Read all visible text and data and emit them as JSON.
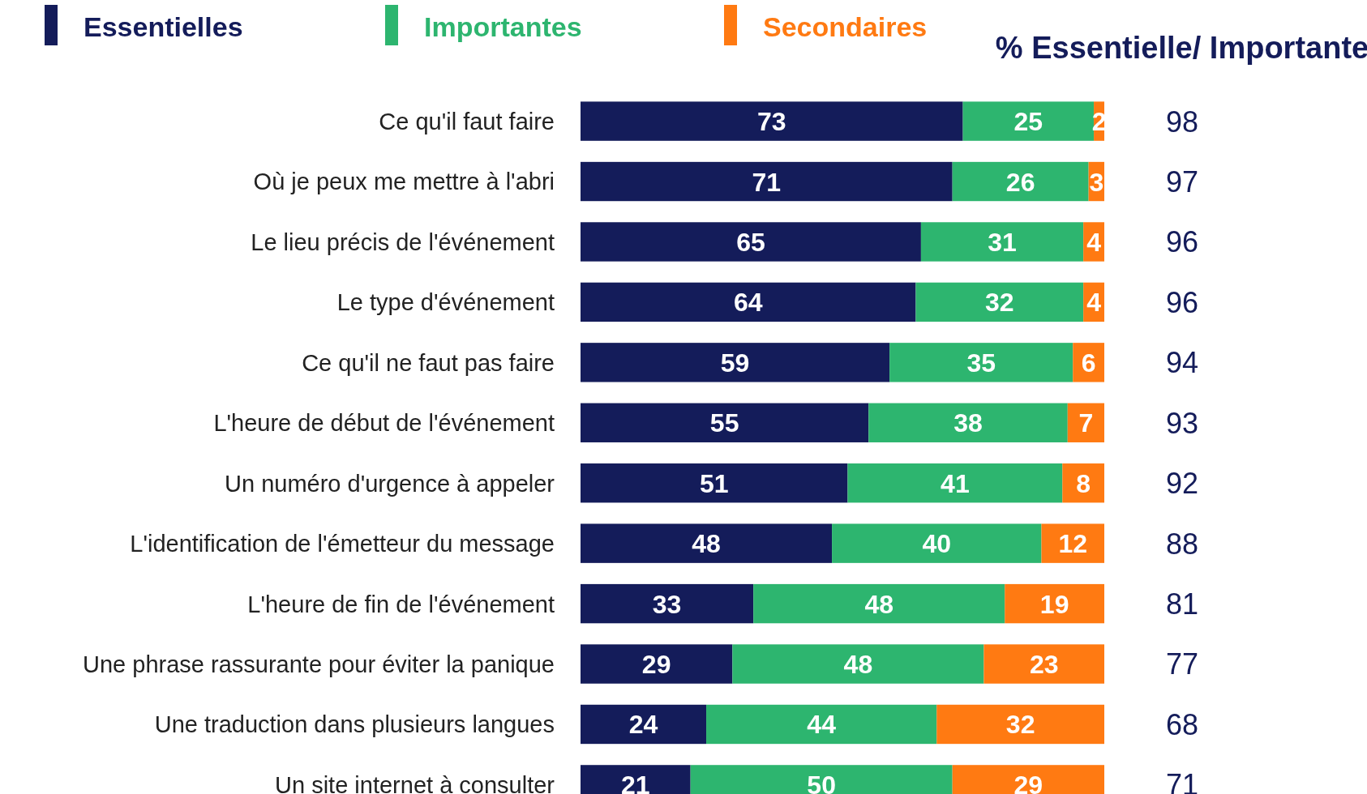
{
  "chart_data": {
    "type": "bar",
    "orientation": "horizontal",
    "stacked": true,
    "data_labels": true,
    "legend": "top left",
    "categories": [
      "Ce qu'il faut faire",
      "Où je peux me mettre à l'abri",
      "Le lieu précis de l'événement",
      "Le type d'événement",
      "Ce qu'il ne faut pas faire",
      "L'heure de début de l'événement",
      "Un numéro d'urgence à appeler",
      "L'identification de l'émetteur du message",
      "L'heure de fin de l'événement",
      "Une phrase rassurante pour éviter la panique",
      "Une traduction dans plusieurs langues",
      "Un site internet à consulter"
    ],
    "series": [
      {
        "name": "Essentielles",
        "color": "#141c5a",
        "values": [
          73,
          71,
          65,
          64,
          59,
          55,
          51,
          48,
          33,
          29,
          24,
          21
        ]
      },
      {
        "name": "Importantes",
        "color": "#2db56f",
        "values": [
          25,
          26,
          31,
          32,
          35,
          38,
          41,
          40,
          48,
          48,
          44,
          50
        ]
      },
      {
        "name": "Secondaires",
        "color": "#ff7a12",
        "values": [
          2,
          3,
          4,
          4,
          6,
          7,
          8,
          12,
          19,
          23,
          32,
          29
        ]
      }
    ],
    "annotations": [
      "% Essentielle/ Importante",
      "98",
      "97",
      "96",
      "96",
      "94",
      "93",
      "92",
      "88",
      "81",
      "77",
      "68",
      "71"
    ]
  }
}
